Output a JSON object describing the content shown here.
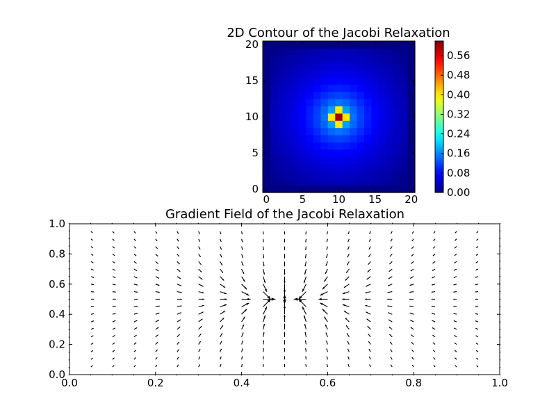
{
  "chart_data": [
    {
      "type": "heatmap",
      "title": "2D Contour of the Jacobi Relaxation",
      "xlabel": "",
      "ylabel": "",
      "xlim": [
        -0.5,
        20.5
      ],
      "ylim": [
        -0.5,
        20.5
      ],
      "x_ticks": [
        "0",
        "5",
        "10",
        "15",
        "20"
      ],
      "y_ticks": [
        "0",
        "5",
        "10",
        "15",
        "20"
      ],
      "grid_size": 21,
      "peak": {
        "x": 10,
        "y": 10,
        "value": 0.6
      },
      "colormap": "jet",
      "colorbar": {
        "range": [
          0.0,
          0.62
        ],
        "ticks": [
          "0.00",
          "0.08",
          "0.16",
          "0.24",
          "0.32",
          "0.40",
          "0.48",
          "0.56"
        ]
      },
      "grid": false
    },
    {
      "type": "quiver",
      "title": "Gradient Field of the Jacobi Relaxation",
      "xlabel": "",
      "ylabel": "",
      "xlim": [
        0.0,
        1.0
      ],
      "ylim": [
        0.0,
        1.0
      ],
      "x_ticks": [
        "0.0",
        "0.2",
        "0.4",
        "0.6",
        "0.8",
        "1.0"
      ],
      "y_ticks": [
        "0.0",
        "0.2",
        "0.4",
        "0.6",
        "0.8",
        "1.0"
      ],
      "grid_columns": 21,
      "grid_rows": 21,
      "field_center": {
        "x": 0.5,
        "y": 0.5
      },
      "arrow_color": "#000000",
      "grid": false
    }
  ]
}
